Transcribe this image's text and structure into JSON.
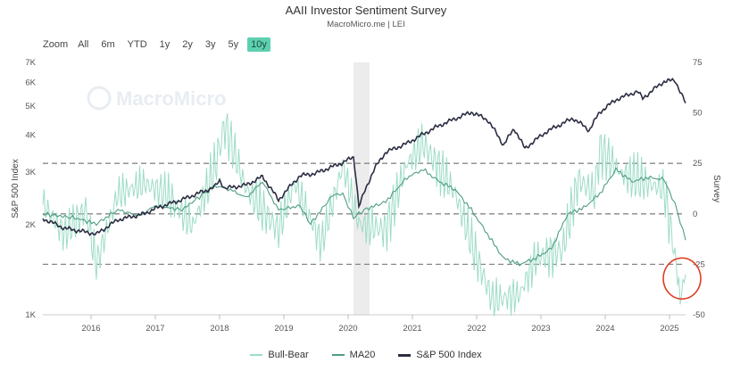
{
  "header": {
    "title": "AAII Investor Sentiment Survey",
    "subtitle": "MacroMicro.me | LEI"
  },
  "zoom": {
    "label": "Zoom",
    "buttons": [
      "All",
      "6m",
      "YTD",
      "1y",
      "2y",
      "3y",
      "5y",
      "10y"
    ],
    "active": "10y"
  },
  "watermark": {
    "text": "MacroMicro"
  },
  "colors": {
    "bull_bear": "#9ddcc6",
    "ma20": "#4e9e80",
    "sp500": "#2b2d42",
    "recession": "#ececec",
    "dashed": "#888888",
    "highlight_circle": "#e03c20",
    "zoom_active": "#5ed0b0"
  },
  "chart_data": {
    "type": "line",
    "title": "AAII Investor Sentiment Survey",
    "left_axis": {
      "title": "S&P 500 Index",
      "scale": "log",
      "range": [
        1000,
        7000
      ],
      "ticks": [
        1000,
        2000,
        3000,
        4000,
        5000,
        6000,
        7000
      ],
      "tick_labels": [
        "1K",
        "2K",
        "3K",
        "4K",
        "5K",
        "6K",
        "7K"
      ]
    },
    "right_axis": {
      "title": "Survey",
      "range": [
        -50,
        75
      ],
      "ticks": [
        -50,
        -25,
        0,
        25,
        50,
        75
      ],
      "tick_labels": [
        "-50",
        "-25",
        "0",
        "25",
        "50",
        "75"
      ],
      "dashed_lines": [
        -25,
        0,
        25
      ]
    },
    "x_axis": {
      "range": [
        "2015-04",
        "2025-04"
      ],
      "tick_labels": [
        "2016",
        "2017",
        "2018",
        "2019",
        "2020",
        "2021",
        "2022",
        "2023",
        "2024",
        "2025"
      ]
    },
    "shaded_period": [
      "2020-02",
      "2020-05"
    ],
    "series": [
      {
        "name": "S&P 500 Index",
        "axis": "left",
        "points": [
          [
            "2015-04",
            2100
          ],
          [
            "2015-08",
            1950
          ],
          [
            "2016-01",
            1880
          ],
          [
            "2016-02",
            1860
          ],
          [
            "2016-06",
            2080
          ],
          [
            "2016-11",
            2180
          ],
          [
            "2017-01",
            2270
          ],
          [
            "2017-06",
            2430
          ],
          [
            "2017-12",
            2670
          ],
          [
            "2018-01",
            2820
          ],
          [
            "2018-02",
            2650
          ],
          [
            "2018-06",
            2720
          ],
          [
            "2018-09",
            2900
          ],
          [
            "2018-12",
            2420
          ],
          [
            "2019-04",
            2920
          ],
          [
            "2019-07",
            2980
          ],
          [
            "2019-12",
            3230
          ],
          [
            "2020-02",
            3380
          ],
          [
            "2020-03",
            2300
          ],
          [
            "2020-06",
            3100
          ],
          [
            "2020-08",
            3500
          ],
          [
            "2020-12",
            3750
          ],
          [
            "2021-06",
            4300
          ],
          [
            "2021-12",
            4770
          ],
          [
            "2022-03",
            4500
          ],
          [
            "2022-06",
            3700
          ],
          [
            "2022-08",
            4200
          ],
          [
            "2022-10",
            3600
          ],
          [
            "2023-02",
            4100
          ],
          [
            "2023-07",
            4550
          ],
          [
            "2023-10",
            4150
          ],
          [
            "2023-12",
            4770
          ],
          [
            "2024-03",
            5250
          ],
          [
            "2024-07",
            5600
          ],
          [
            "2024-08",
            5300
          ],
          [
            "2024-12",
            6050
          ],
          [
            "2025-02",
            6100
          ],
          [
            "2025-03",
            5600
          ],
          [
            "2025-04",
            5100
          ]
        ]
      },
      {
        "name": "MA20",
        "axis": "right",
        "points": [
          [
            "2015-04",
            0
          ],
          [
            "2015-10",
            -2
          ],
          [
            "2016-02",
            -5
          ],
          [
            "2016-06",
            2
          ],
          [
            "2016-10",
            -1
          ],
          [
            "2017-01",
            4
          ],
          [
            "2017-06",
            2
          ],
          [
            "2017-12",
            14
          ],
          [
            "2018-03",
            12
          ],
          [
            "2018-06",
            8
          ],
          [
            "2018-09",
            16
          ],
          [
            "2018-12",
            2
          ],
          [
            "2019-04",
            4
          ],
          [
            "2019-06",
            -5
          ],
          [
            "2019-10",
            9
          ],
          [
            "2019-12",
            10
          ],
          [
            "2020-02",
            -2
          ],
          [
            "2020-04",
            2
          ],
          [
            "2020-08",
            6
          ],
          [
            "2020-12",
            18
          ],
          [
            "2021-03",
            22
          ],
          [
            "2021-06",
            16
          ],
          [
            "2021-09",
            12
          ],
          [
            "2021-12",
            2
          ],
          [
            "2022-03",
            -10
          ],
          [
            "2022-06",
            -22
          ],
          [
            "2022-09",
            -25
          ],
          [
            "2022-12",
            -22
          ],
          [
            "2023-03",
            -17
          ],
          [
            "2023-06",
            0
          ],
          [
            "2023-09",
            3
          ],
          [
            "2023-12",
            10
          ],
          [
            "2024-03",
            22
          ],
          [
            "2024-06",
            16
          ],
          [
            "2024-09",
            18
          ],
          [
            "2024-12",
            17
          ],
          [
            "2025-02",
            5
          ],
          [
            "2025-04",
            -13
          ]
        ]
      },
      {
        "name": "Bull-Bear",
        "axis": "right",
        "points": [
          [
            "2015-04",
            5
          ],
          [
            "2015-08",
            -10
          ],
          [
            "2015-12",
            2
          ],
          [
            "2016-02",
            -25
          ],
          [
            "2016-06",
            10
          ],
          [
            "2016-11",
            15
          ],
          [
            "2017-03",
            10
          ],
          [
            "2017-08",
            -6
          ],
          [
            "2017-12",
            22
          ],
          [
            "2018-02",
            44
          ],
          [
            "2018-06",
            12
          ],
          [
            "2018-12",
            -8
          ],
          [
            "2019-03",
            15
          ],
          [
            "2019-08",
            -15
          ],
          [
            "2019-12",
            24
          ],
          [
            "2020-03",
            -5
          ],
          [
            "2020-08",
            -8
          ],
          [
            "2020-12",
            25
          ],
          [
            "2021-03",
            35
          ],
          [
            "2021-09",
            10
          ],
          [
            "2022-01",
            -22
          ],
          [
            "2022-04",
            -43
          ],
          [
            "2022-09",
            -40
          ],
          [
            "2022-12",
            -22
          ],
          [
            "2023-05",
            -18
          ],
          [
            "2023-08",
            17
          ],
          [
            "2023-11",
            10
          ],
          [
            "2023-12",
            32
          ],
          [
            "2024-04",
            20
          ],
          [
            "2024-08",
            16
          ],
          [
            "2024-12",
            12
          ],
          [
            "2025-02",
            -20
          ],
          [
            "2025-03",
            -42
          ],
          [
            "2025-04",
            -30
          ]
        ]
      }
    ],
    "legend": {
      "position": "bottom",
      "items": [
        "Bull-Bear",
        "MA20",
        "S&P 500 Index"
      ]
    },
    "annotation": {
      "type": "circle",
      "at": [
        "2025-03",
        -32
      ],
      "color": "#e03c20"
    }
  }
}
